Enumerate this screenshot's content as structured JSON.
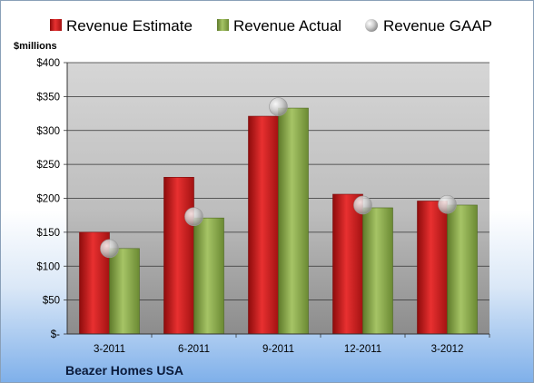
{
  "chart_data": {
    "type": "bar",
    "title": "",
    "unit_label": "$millions",
    "company": "Beazer Homes USA",
    "categories": [
      "3-2011",
      "6-2011",
      "9-2011",
      "12-2011",
      "3-2012"
    ],
    "series": [
      {
        "name": "Revenue Estimate",
        "kind": "bar",
        "color": "#d42020",
        "values": [
          150,
          231,
          321,
          206,
          196
        ]
      },
      {
        "name": "Revenue Actual",
        "kind": "bar",
        "color": "#8fae4c",
        "values": [
          126,
          171,
          333,
          186,
          190
        ]
      },
      {
        "name": "Revenue GAAP",
        "kind": "marker",
        "color": "#b9b9b9",
        "values": [
          126,
          173,
          335,
          190,
          191
        ]
      }
    ],
    "ylim": [
      0,
      400
    ],
    "yticks": [
      0,
      50,
      100,
      150,
      200,
      250,
      300,
      350,
      400
    ],
    "ytick_labels": [
      "$-",
      "$50",
      "$100",
      "$150",
      "$200",
      "$250",
      "$300",
      "$350",
      "$400"
    ],
    "grid": true,
    "legend": "top"
  }
}
